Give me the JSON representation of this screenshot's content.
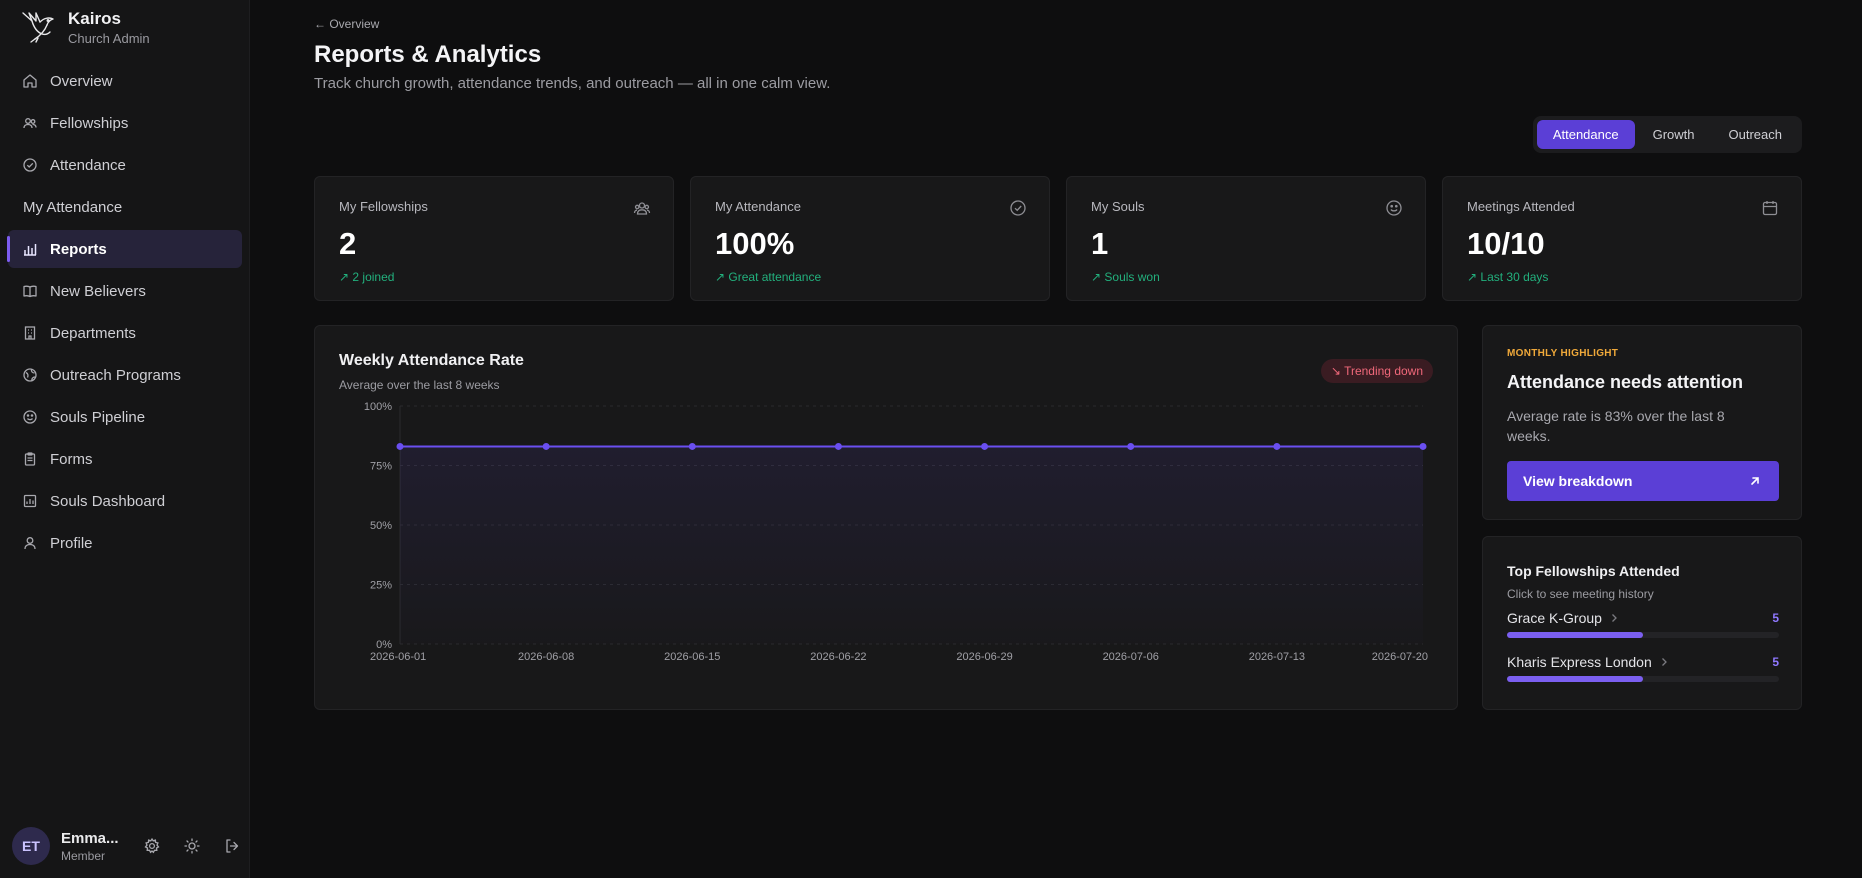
{
  "brand": {
    "name": "Kairos",
    "subtitle": "Church Admin"
  },
  "sidebar": {
    "items": [
      {
        "label": "Overview",
        "icon": "home-icon"
      },
      {
        "label": "Fellowships",
        "icon": "users-icon"
      },
      {
        "label": "Attendance",
        "icon": "check-circle-icon"
      },
      {
        "label": "My Attendance",
        "icon": ""
      },
      {
        "label": "Reports",
        "icon": "bar-chart-icon",
        "active": true
      },
      {
        "label": "New Believers",
        "icon": "book-icon"
      },
      {
        "label": "Departments",
        "icon": "building-icon"
      },
      {
        "label": "Outreach Programs",
        "icon": "globe-icon"
      },
      {
        "label": "Souls Pipeline",
        "icon": "smile-icon"
      },
      {
        "label": "Forms",
        "icon": "clipboard-icon"
      },
      {
        "label": "Souls Dashboard",
        "icon": "dashboard-icon"
      },
      {
        "label": "Profile",
        "icon": "user-icon"
      }
    ]
  },
  "user": {
    "initials": "ET",
    "name": "Emma...",
    "role": "Member"
  },
  "header": {
    "breadcrumb": "← Overview",
    "title": "Reports & Analytics",
    "subtitle": "Track church growth, attendance trends, and outreach — all in one calm view."
  },
  "tabs": [
    {
      "label": "Attendance",
      "active": true
    },
    {
      "label": "Growth",
      "active": false
    },
    {
      "label": "Outreach",
      "active": false
    }
  ],
  "stats": [
    {
      "label": "My Fellowships",
      "value": "2",
      "note": "↗ 2 joined",
      "icon": "users-icon"
    },
    {
      "label": "My Attendance",
      "value": "100%",
      "note": "↗ Great attendance",
      "icon": "check-circle-icon"
    },
    {
      "label": "My Souls",
      "value": "1",
      "note": "↗ Souls won",
      "icon": "smile-icon"
    },
    {
      "label": "Meetings Attended",
      "value": "10/10",
      "note": "↗ Last 30 days",
      "icon": "calendar-icon"
    }
  ],
  "chart": {
    "title": "Weekly Attendance Rate",
    "subtitle": "Average over the last 8 weeks",
    "trend_label": "↘ Trending down"
  },
  "chart_data": {
    "type": "area",
    "x": [
      "2026-06-01",
      "2026-06-08",
      "2026-06-15",
      "2026-06-22",
      "2026-06-29",
      "2026-07-06",
      "2026-07-13",
      "2026-07-20"
    ],
    "series": [
      {
        "values": [
          83,
          83,
          83,
          83,
          83,
          83,
          83,
          83
        ]
      }
    ],
    "ylim": [
      0,
      100
    ],
    "yticks": [
      "0%",
      "25%",
      "50%",
      "75%",
      "100%"
    ],
    "grid": true,
    "color": "#6a4ff0"
  },
  "highlight": {
    "kicker": "MONTHLY HIGHLIGHT",
    "title": "Attendance needs attention",
    "text": "Average rate is 83% over the last 8 weeks.",
    "button": "View breakdown"
  },
  "top_fellowships": {
    "title": "Top Fellowships Attended",
    "subtitle": "Click to see meeting history",
    "items": [
      {
        "name": "Grace K-Group",
        "count": "5",
        "fraction": 0.5
      },
      {
        "name": "Kharis Express London",
        "count": "5",
        "fraction": 0.5
      }
    ]
  },
  "colors": {
    "accent": "#5b3fd6",
    "positive": "#22b07d",
    "warning": "#f0a93a",
    "negative": "#f0687a"
  }
}
